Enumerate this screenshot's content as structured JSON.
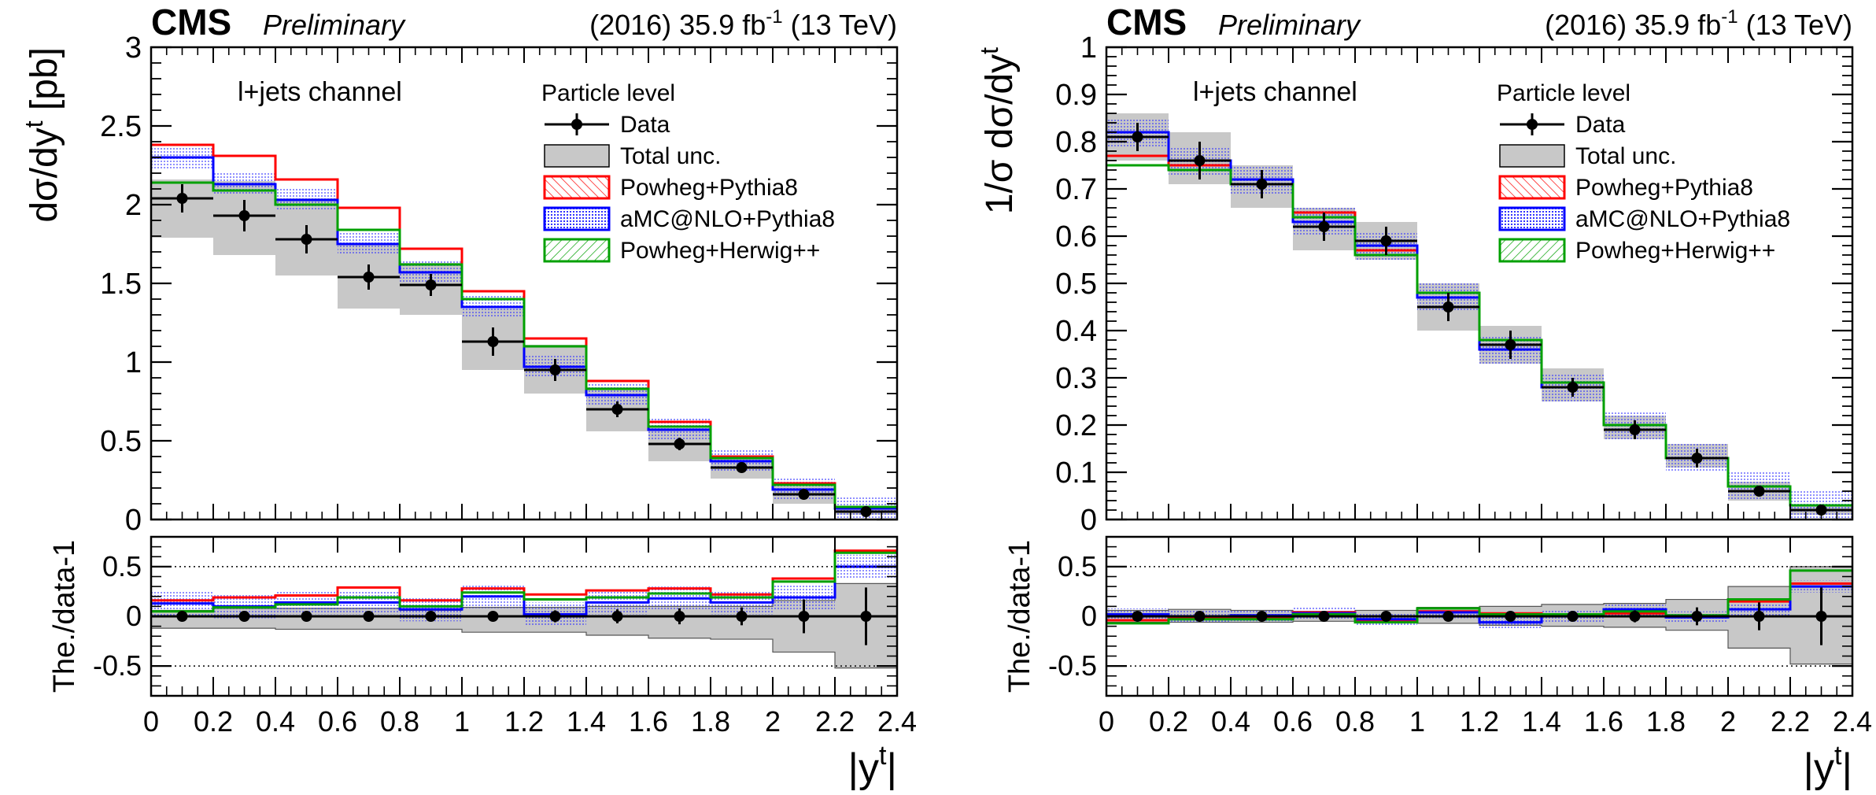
{
  "figure": {
    "x_edges": [
      0,
      0.2,
      0.4,
      0.6,
      0.8,
      1.0,
      1.2,
      1.4,
      1.6,
      1.8,
      2.0,
      2.2,
      2.4
    ],
    "x_ticks": [
      "0",
      "0.2",
      "0.4",
      "0.6",
      "0.8",
      "1",
      "1.2",
      "1.4",
      "1.6",
      "1.8",
      "2",
      "2.2",
      "2.4"
    ],
    "xlabel_base": "|y",
    "xlabel_sup": "t",
    "xlabel_end": "|",
    "experiment": "CMS",
    "status": "Preliminary",
    "lumi_pre": "(2016) 35.9 fb",
    "lumi_sup": "-1",
    "lumi_post": " (13 TeV)",
    "channel": "l+jets channel",
    "legend_header": "Particle level",
    "legend": {
      "data": "Data",
      "unc": "Total unc.",
      "powheg_pythia": "Powheg+Pythia8",
      "amcnlo_pythia": "aMC@NLO+Pythia8",
      "powheg_herwig": "Powheg+Herwig++"
    },
    "colors": {
      "data": "#000000",
      "unc_fill": "#c8c8c8",
      "powheg_pythia": "#ff0000",
      "amcnlo_pythia": "#0000ff",
      "amcnlo_fill": "#7b7bff",
      "powheg_herwig": "#00a000"
    },
    "ratio_ylabel": "The./data-1",
    "ratio_ylim": [
      -0.8,
      0.8
    ],
    "ratio_ticks": [
      "-0.5",
      "0",
      "0.5"
    ]
  },
  "chart_data": [
    {
      "type": "line",
      "panel": "left",
      "ylabel_pre": "dσ/dy",
      "ylabel_sup": "t",
      "ylabel_post": " [pb]",
      "ylim": [
        0,
        3
      ],
      "y_ticks": [
        "0",
        "0.5",
        "1",
        "1.5",
        "2",
        "2.5",
        "3"
      ],
      "x": [
        0.1,
        0.3,
        0.5,
        0.7,
        0.9,
        1.1,
        1.3,
        1.5,
        1.7,
        1.9,
        2.1,
        2.3
      ],
      "data": [
        2.04,
        1.93,
        1.78,
        1.54,
        1.49,
        1.13,
        0.95,
        0.7,
        0.48,
        0.33,
        0.16,
        0.05
      ],
      "data_err": [
        0.09,
        0.1,
        0.09,
        0.08,
        0.07,
        0.09,
        0.07,
        0.05,
        0.04,
        0.03,
        0.03,
        0.03
      ],
      "unc_band": [
        [
          1.79,
          2.16
        ],
        [
          1.68,
          2.15
        ],
        [
          1.55,
          2.04
        ],
        [
          1.34,
          1.75
        ],
        [
          1.3,
          1.63
        ],
        [
          0.95,
          1.34
        ],
        [
          0.8,
          1.11
        ],
        [
          0.56,
          0.84
        ],
        [
          0.37,
          0.58
        ],
        [
          0.26,
          0.39
        ],
        [
          0.1,
          0.21
        ],
        [
          0.03,
          0.07
        ]
      ],
      "series": [
        {
          "key": "powheg_pythia",
          "values": [
            2.38,
            2.31,
            2.16,
            1.98,
            1.72,
            1.45,
            1.15,
            0.88,
            0.62,
            0.4,
            0.23,
            0.08
          ]
        },
        {
          "key": "amcnlo_pythia",
          "values": [
            2.3,
            2.13,
            2.03,
            1.75,
            1.57,
            1.35,
            0.97,
            0.79,
            0.57,
            0.37,
            0.19,
            0.07
          ],
          "band": 0.07
        },
        {
          "key": "powheg_herwig",
          "values": [
            2.14,
            2.09,
            2.0,
            1.84,
            1.62,
            1.4,
            1.1,
            0.83,
            0.59,
            0.39,
            0.22,
            0.08
          ]
        }
      ],
      "ratio": {
        "unc_band": [
          [
            -0.12,
            0.06
          ],
          [
            -0.12,
            0.08
          ],
          [
            -0.13,
            0.08
          ],
          [
            -0.13,
            0.08
          ],
          [
            -0.13,
            0.06
          ],
          [
            -0.16,
            0.09
          ],
          [
            -0.16,
            0.09
          ],
          [
            -0.19,
            0.1
          ],
          [
            -0.22,
            0.1
          ],
          [
            -0.23,
            0.1
          ],
          [
            -0.36,
            0.16
          ],
          [
            -0.52,
            0.33
          ]
        ],
        "data_err": [
          0.02,
          0.02,
          0.02,
          0.02,
          0.02,
          0.03,
          0.06,
          0.07,
          0.08,
          0.09,
          0.17,
          0.29
        ],
        "series": [
          {
            "key": "powheg_pythia",
            "values": [
              0.16,
              0.19,
              0.21,
              0.29,
              0.16,
              0.28,
              0.22,
              0.26,
              0.28,
              0.22,
              0.38,
              0.66
            ]
          },
          {
            "key": "amcnlo_pythia",
            "values": [
              0.13,
              0.1,
              0.14,
              0.14,
              0.07,
              0.2,
              0.02,
              0.14,
              0.18,
              0.14,
              0.19,
              0.5
            ],
            "band": 0.12
          },
          {
            "key": "powheg_herwig",
            "values": [
              0.05,
              0.09,
              0.12,
              0.19,
              0.1,
              0.24,
              0.17,
              0.19,
              0.23,
              0.19,
              0.35,
              0.64
            ]
          }
        ]
      }
    },
    {
      "type": "line",
      "panel": "right",
      "ylabel_pre": "1/σ dσ/dy",
      "ylabel_sup": "t",
      "ylabel_post": "",
      "ylim": [
        0,
        1
      ],
      "y_ticks": [
        "0",
        "0.1",
        "0.2",
        "0.3",
        "0.4",
        "0.5",
        "0.6",
        "0.7",
        "0.8",
        "0.9",
        "1"
      ],
      "x": [
        0.1,
        0.3,
        0.5,
        0.7,
        0.9,
        1.1,
        1.3,
        1.5,
        1.7,
        1.9,
        2.1,
        2.3
      ],
      "data": [
        0.81,
        0.76,
        0.71,
        0.62,
        0.59,
        0.45,
        0.37,
        0.28,
        0.19,
        0.13,
        0.06,
        0.02
      ],
      "data_err": [
        0.03,
        0.04,
        0.03,
        0.03,
        0.03,
        0.03,
        0.03,
        0.02,
        0.02,
        0.02,
        0.01,
        0.01
      ],
      "unc_band": [
        [
          0.76,
          0.86
        ],
        [
          0.71,
          0.82
        ],
        [
          0.66,
          0.75
        ],
        [
          0.57,
          0.66
        ],
        [
          0.55,
          0.63
        ],
        [
          0.4,
          0.5
        ],
        [
          0.33,
          0.41
        ],
        [
          0.25,
          0.32
        ],
        [
          0.17,
          0.22
        ],
        [
          0.11,
          0.16
        ],
        [
          0.04,
          0.08
        ],
        [
          0.01,
          0.03
        ]
      ],
      "series": [
        {
          "key": "powheg_pythia",
          "values": [
            0.77,
            0.75,
            0.72,
            0.65,
            0.57,
            0.48,
            0.38,
            0.29,
            0.2,
            0.13,
            0.07,
            0.03
          ]
        },
        {
          "key": "amcnlo_pythia",
          "values": [
            0.82,
            0.76,
            0.72,
            0.63,
            0.58,
            0.47,
            0.36,
            0.28,
            0.2,
            0.13,
            0.07,
            0.03
          ],
          "band": 0.03
        },
        {
          "key": "powheg_herwig",
          "values": [
            0.75,
            0.74,
            0.71,
            0.64,
            0.56,
            0.48,
            0.38,
            0.29,
            0.2,
            0.13,
            0.07,
            0.03
          ]
        }
      ],
      "ratio": {
        "unc_band": [
          [
            -0.06,
            0.06
          ],
          [
            -0.06,
            0.07
          ],
          [
            -0.06,
            0.06
          ],
          [
            -0.05,
            0.05
          ],
          [
            -0.06,
            0.06
          ],
          [
            -0.07,
            0.09
          ],
          [
            -0.09,
            0.1
          ],
          [
            -0.1,
            0.12
          ],
          [
            -0.11,
            0.13
          ],
          [
            -0.14,
            0.17
          ],
          [
            -0.32,
            0.3
          ],
          [
            -0.48,
            0.5
          ]
        ],
        "data_err": [
          0.02,
          0.03,
          0.02,
          0.02,
          0.02,
          0.03,
          0.04,
          0.05,
          0.06,
          0.09,
          0.14,
          0.29
        ],
        "series": [
          {
            "key": "powheg_pythia",
            "values": [
              -0.04,
              -0.01,
              -0.02,
              0.04,
              -0.04,
              0.05,
              0.03,
              0.01,
              0.03,
              0.0,
              0.15,
              0.33
            ]
          },
          {
            "key": "amcnlo_pythia",
            "values": [
              0.02,
              0.0,
              0.01,
              0.03,
              -0.03,
              0.04,
              -0.06,
              0.0,
              0.07,
              -0.01,
              0.07,
              0.3
            ],
            "band": 0.06
          },
          {
            "key": "powheg_herwig",
            "values": [
              -0.07,
              -0.03,
              -0.03,
              0.02,
              -0.06,
              0.08,
              0.02,
              0.02,
              0.05,
              0.01,
              0.17,
              0.46
            ]
          }
        ]
      }
    }
  ]
}
